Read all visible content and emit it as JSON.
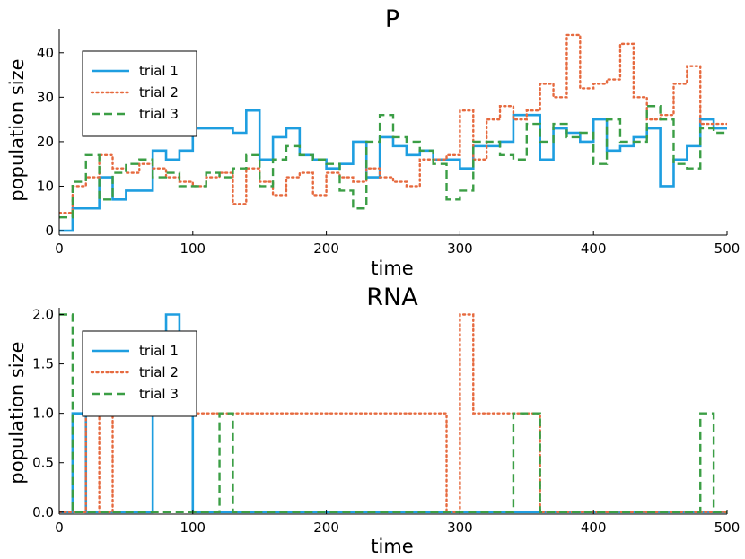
{
  "chart_data": [
    {
      "type": "line",
      "step": true,
      "title": "P",
      "xlabel": "time",
      "ylabel": "population size",
      "xlim": [
        0,
        500
      ],
      "ylim": [
        -1,
        45
      ],
      "xticks": [
        0,
        100,
        200,
        300,
        400,
        500
      ],
      "yticks": [
        0,
        10,
        20,
        30,
        40
      ],
      "xtick_labels": [
        "0",
        "100",
        "200",
        "300",
        "400",
        "500"
      ],
      "ytick_labels": [
        "0",
        "10",
        "20",
        "30",
        "40"
      ],
      "legend_position": "top-left",
      "series": [
        {
          "name": "trial 1",
          "color": "#1e9ee0",
          "style": "solid",
          "x": [
            0,
            10,
            30,
            40,
            50,
            70,
            80,
            90,
            100,
            130,
            140,
            150,
            160,
            170,
            180,
            190,
            200,
            210,
            220,
            230,
            240,
            250,
            260,
            270,
            280,
            300,
            310,
            320,
            330,
            340,
            360,
            370,
            380,
            390,
            400,
            410,
            420,
            430,
            440,
            450,
            460,
            470,
            480,
            490,
            500
          ],
          "y": [
            0,
            5,
            12,
            7,
            9,
            18,
            16,
            18,
            23,
            22,
            27,
            16,
            21,
            23,
            17,
            16,
            14,
            15,
            20,
            12,
            21,
            19,
            17,
            18,
            16,
            14,
            19,
            19,
            20,
            26,
            16,
            23,
            22,
            20,
            25,
            18,
            19,
            21,
            23,
            10,
            16,
            19,
            25,
            23,
            23
          ]
        },
        {
          "name": "trial 2",
          "color": "#e66a3f",
          "style": "dotted",
          "x": [
            0,
            10,
            20,
            30,
            40,
            50,
            60,
            70,
            80,
            90,
            100,
            110,
            120,
            130,
            140,
            150,
            160,
            170,
            180,
            190,
            200,
            210,
            220,
            230,
            240,
            250,
            260,
            270,
            280,
            290,
            300,
            310,
            320,
            330,
            340,
            350,
            360,
            370,
            380,
            390,
            400,
            410,
            420,
            430,
            440,
            450,
            460,
            470,
            480,
            490,
            500
          ],
          "y": [
            4,
            10,
            12,
            17,
            14,
            13,
            15,
            14,
            12,
            11,
            10,
            12,
            13,
            6,
            14,
            11,
            8,
            12,
            13,
            8,
            13,
            12,
            11,
            14,
            12,
            11,
            10,
            16,
            16,
            17,
            27,
            16,
            25,
            28,
            25,
            27,
            33,
            30,
            44,
            32,
            33,
            34,
            42,
            30,
            25,
            26,
            33,
            37,
            24,
            24,
            24
          ]
        },
        {
          "name": "trial 3",
          "color": "#3b9e45",
          "style": "dashed",
          "x": [
            0,
            10,
            20,
            30,
            40,
            50,
            60,
            70,
            80,
            90,
            100,
            110,
            120,
            130,
            140,
            150,
            160,
            170,
            180,
            190,
            200,
            210,
            220,
            230,
            240,
            250,
            260,
            270,
            280,
            290,
            300,
            310,
            320,
            330,
            340,
            350,
            360,
            370,
            380,
            390,
            400,
            410,
            420,
            430,
            440,
            450,
            460,
            470,
            480,
            490,
            500
          ],
          "y": [
            3,
            11,
            17,
            7,
            13,
            15,
            16,
            12,
            13,
            10,
            10,
            13,
            12,
            14,
            17,
            10,
            16,
            19,
            17,
            16,
            15,
            9,
            5,
            20,
            26,
            21,
            20,
            18,
            15,
            7,
            9,
            20,
            20,
            17,
            16,
            24,
            20,
            24,
            21,
            22,
            15,
            25,
            20,
            20,
            28,
            25,
            15,
            14,
            23,
            22,
            22
          ]
        }
      ]
    },
    {
      "type": "line",
      "step": true,
      "title": "RNA",
      "xlabel": "time",
      "ylabel": "population size",
      "xlim": [
        0,
        500
      ],
      "ylim": [
        -0.02,
        2.05
      ],
      "xticks": [
        0,
        100,
        200,
        300,
        400,
        500
      ],
      "yticks": [
        0.0,
        0.5,
        1.0,
        1.5,
        2.0
      ],
      "xtick_labels": [
        "0",
        "100",
        "200",
        "300",
        "400",
        "500"
      ],
      "ytick_labels": [
        "0.0",
        "0.5",
        "1.0",
        "1.5",
        "2.0"
      ],
      "legend_position": "top-left",
      "series": [
        {
          "name": "trial 1",
          "color": "#1e9ee0",
          "style": "solid",
          "x": [
            0,
            10,
            20,
            70,
            80,
            90,
            100,
            500
          ],
          "y": [
            0,
            1,
            0,
            1,
            2,
            1,
            0,
            0
          ]
        },
        {
          "name": "trial 2",
          "color": "#e66a3f",
          "style": "dotted",
          "x": [
            0,
            20,
            30,
            40,
            280,
            290,
            300,
            310,
            340,
            360,
            500
          ],
          "y": [
            0,
            1,
            0,
            1,
            1,
            0,
            2,
            1,
            1,
            0,
            0
          ]
        },
        {
          "name": "trial 3",
          "color": "#3b9e45",
          "style": "dashed",
          "x": [
            0,
            10,
            120,
            130,
            340,
            360,
            480,
            490,
            500
          ],
          "y": [
            2,
            0,
            1,
            0,
            1,
            0,
            1,
            0,
            0
          ]
        }
      ]
    }
  ]
}
